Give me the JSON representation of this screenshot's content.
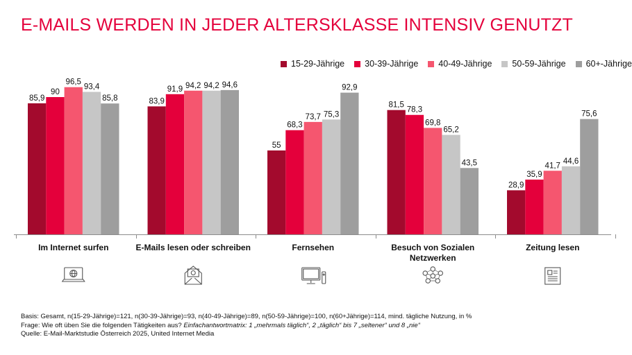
{
  "title": "E-MAILS WERDEN IN JEDER ALTERSKLASSE INTENSIV GENUTZT",
  "colors": {
    "title": "#e4003b",
    "series": [
      "#a30a2d",
      "#e4003b",
      "#f5566f",
      "#c6c6c6",
      "#9e9e9e"
    ]
  },
  "chart_data": {
    "type": "bar",
    "title": "E-MAILS WERDEN IN JEDER ALTERSKLASSE INTENSIV GENUTZT",
    "categories": [
      [
        "Im Internet surfen"
      ],
      [
        "E-Mails lesen oder schreiben"
      ],
      [
        "Fernsehen"
      ],
      [
        "Besuch von Sozialen",
        "Netzwerken"
      ],
      [
        "Zeitung lesen"
      ]
    ],
    "series": [
      {
        "name": "15-29-Jährige",
        "values": [
          85.9,
          83.9,
          55,
          81.5,
          28.9
        ]
      },
      {
        "name": "30-39-Jährige",
        "values": [
          90,
          91.9,
          68.3,
          78.3,
          35.9
        ]
      },
      {
        "name": "40-49-Jährige",
        "values": [
          96.5,
          94.2,
          73.7,
          69.8,
          41.7
        ]
      },
      {
        "name": "50-59-Jährige",
        "values": [
          93.4,
          94.2,
          75.3,
          65.2,
          44.6
        ]
      },
      {
        "name": "60+-Jährige",
        "values": [
          85.8,
          94.6,
          92.9,
          43.5,
          75.6
        ]
      }
    ],
    "value_labels": [
      [
        "85,9",
        "83,9",
        "55",
        "81,5",
        "28,9"
      ],
      [
        "90",
        "91,9",
        "68,3",
        "78,3",
        "35,9"
      ],
      [
        "96,5",
        "94,2",
        "73,7",
        "69,8",
        "41,7"
      ],
      [
        "93,4",
        "94,2",
        "75,3",
        "65,2",
        "44,6"
      ],
      [
        "85,8",
        "94,6",
        "92,9",
        "43,5",
        "75,6"
      ]
    ],
    "ylim": [
      0,
      100
    ],
    "grid": false,
    "legend_position": "top-right",
    "category_icons": [
      "laptop-icon",
      "email-envelope-icon",
      "tv-icon",
      "social-network-icon",
      "newspaper-icon"
    ]
  },
  "footnotes": {
    "basis": "Basis: Gesamt, n(15-29-Jährige)=121, n(30-39-Jährige)=93, n(40-49-Jährige)=89, n(50-59-Jährige)=100, n(60+Jährige)=114, mind. tägliche Nutzung, in %",
    "frage_prefix": "Frage: Wie oft üben Sie die folgenden Tätigkeiten aus? ",
    "frage_italic": "Einfachantwortmatrix: 1 „mehrmals täglich“, 2 „täglich“ bis 7 „seltener“ und 8 „nie“",
    "quelle": "Quelle: E-Mail-Marktstudie Österreich 2025, United Internet Media"
  }
}
